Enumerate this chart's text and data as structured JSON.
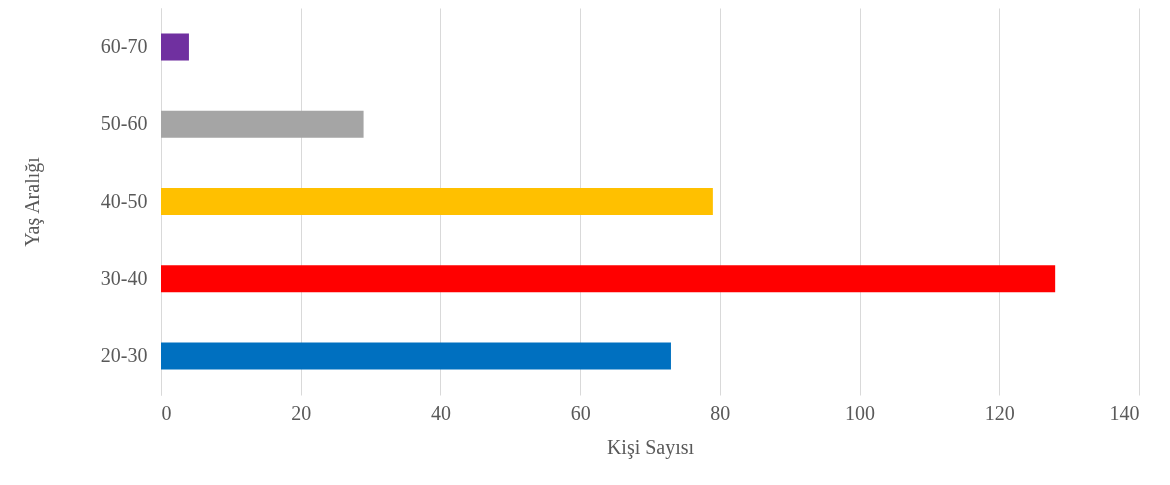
{
  "chart_data": {
    "type": "bar",
    "orientation": "horizontal",
    "xlabel": "Kişi Sayısı",
    "ylabel": "Yaş Aralığı",
    "categories": [
      "60-70",
      "50-60",
      "40-50",
      "30-40",
      "20-30"
    ],
    "values": [
      4,
      29,
      79,
      128,
      73
    ],
    "colors": [
      "#7030a0",
      "#a5a5a5",
      "#ffc000",
      "#ff0000",
      "#0070c0"
    ],
    "xlim": [
      0,
      140
    ],
    "xticks": [
      0,
      20,
      40,
      60,
      80,
      100,
      120,
      140
    ],
    "grid": "x"
  }
}
